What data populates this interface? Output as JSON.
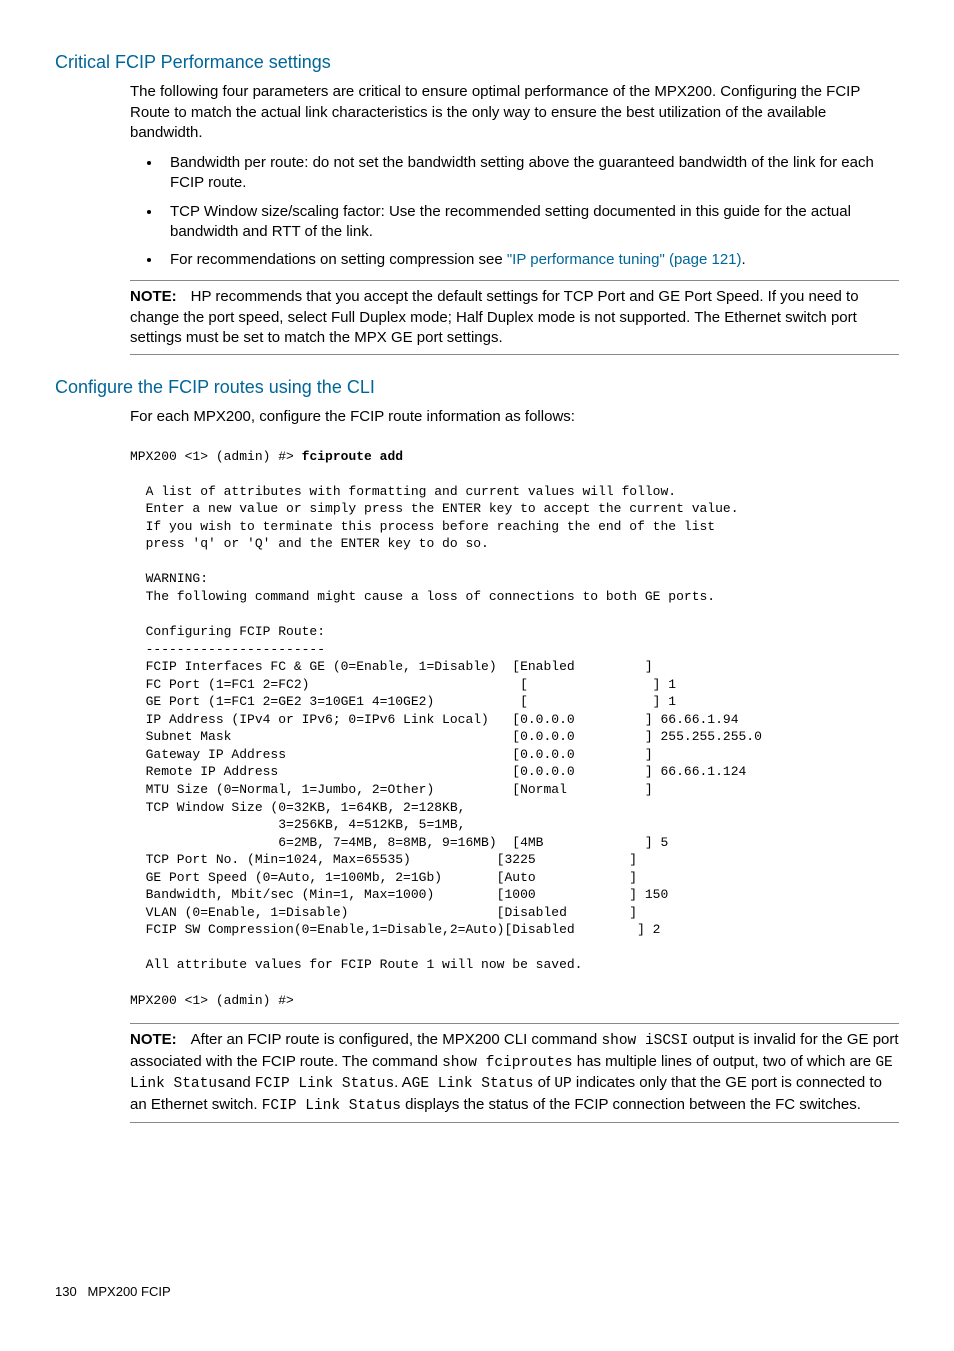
{
  "section1": {
    "heading": "Critical FCIP Performance settings",
    "intro": "The following four parameters are critical to ensure optimal performance of the MPX200. Configuring the FCIP Route to match the actual link characteristics is the only way to ensure the best utilization of the available bandwidth.",
    "bullet1": "Bandwidth per route: do not set the bandwidth setting above the guaranteed bandwidth of the link for each FCIP route.",
    "bullet2": "TCP Window size/scaling factor: Use the recommended setting documented in this guide for the actual bandwidth and RTT of the link.",
    "bullet3_a": "For recommendations on setting compression see ",
    "bullet3_link": "\"IP performance tuning\" (page 121)",
    "bullet3_b": ".",
    "note_label": "NOTE:",
    "note": "HP recommends that you accept the default settings for TCP Port and GE Port Speed. If you need to change the port speed, select Full Duplex mode; Half Duplex mode is not supported. The Ethernet switch port settings must be set to match the MPX GE port settings."
  },
  "section2": {
    "heading": "Configure the FCIP routes using the CLI",
    "intro": "For each MPX200, configure the FCIP route information as follows:",
    "code_prompt": "MPX200 <1> (admin) #> ",
    "code_cmd": "fciproute add",
    "code_body": "\n\n  A list of attributes with formatting and current values will follow.\n  Enter a new value or simply press the ENTER key to accept the current value.\n  If you wish to terminate this process before reaching the end of the list\n  press 'q' or 'Q' and the ENTER key to do so.\n\n  WARNING:\n  The following command might cause a loss of connections to both GE ports.\n\n  Configuring FCIP Route:\n  -----------------------\n  FCIP Interfaces FC & GE (0=Enable, 1=Disable)  [Enabled         ]\n  FC Port (1=FC1 2=FC2)                           [                ] 1\n  GE Port (1=FC1 2=GE2 3=10GE1 4=10GE2)           [                ] 1\n  IP Address (IPv4 or IPv6; 0=IPv6 Link Local)   [0.0.0.0         ] 66.66.1.94\n  Subnet Mask                                    [0.0.0.0         ] 255.255.255.0\n  Gateway IP Address                             [0.0.0.0         ]\n  Remote IP Address                              [0.0.0.0         ] 66.66.1.124\n  MTU Size (0=Normal, 1=Jumbo, 2=Other)          [Normal          ]\n  TCP Window Size (0=32KB, 1=64KB, 2=128KB,\n                   3=256KB, 4=512KB, 5=1MB,\n                   6=2MB, 7=4MB, 8=8MB, 9=16MB)  [4MB             ] 5\n  TCP Port No. (Min=1024, Max=65535)           [3225            ]\n  GE Port Speed (0=Auto, 1=100Mb, 2=1Gb)       [Auto            ]\n  Bandwidth, Mbit/sec (Min=1, Max=1000)        [1000            ] 150\n  VLAN (0=Enable, 1=Disable)                   [Disabled        ]\n  FCIP SW Compression(0=Enable,1=Disable,2=Auto)[Disabled        ] 2\n\n  All attribute values for FCIP Route 1 will now be saved.\n\nMPX200 <1> (admin) #>",
    "note_label": "NOTE:",
    "n2_a": "After an FCIP route is configured, the MPX200 CLI command ",
    "n2_b": "show iSCSI",
    "n2_c": " output is invalid for the GE port associated with the FCIP route. The command ",
    "n2_d": "show fciproutes",
    "n2_e": " has multiple lines of output, two of which are ",
    "n2_f": "GE Link Status",
    "n2_g": "and ",
    "n2_h": "FCIP Link Status",
    "n2_i": ". A",
    "n2_j": "GE Link Status",
    "n2_k": " of ",
    "n2_l": "UP",
    "n2_m": " indicates only that the GE port is connected to an Ethernet switch. ",
    "n2_n": "FCIP Link Status",
    "n2_o": " displays the status of the FCIP connection between the FC switches."
  },
  "footer": {
    "page": "130",
    "title": "MPX200 FCIP"
  }
}
